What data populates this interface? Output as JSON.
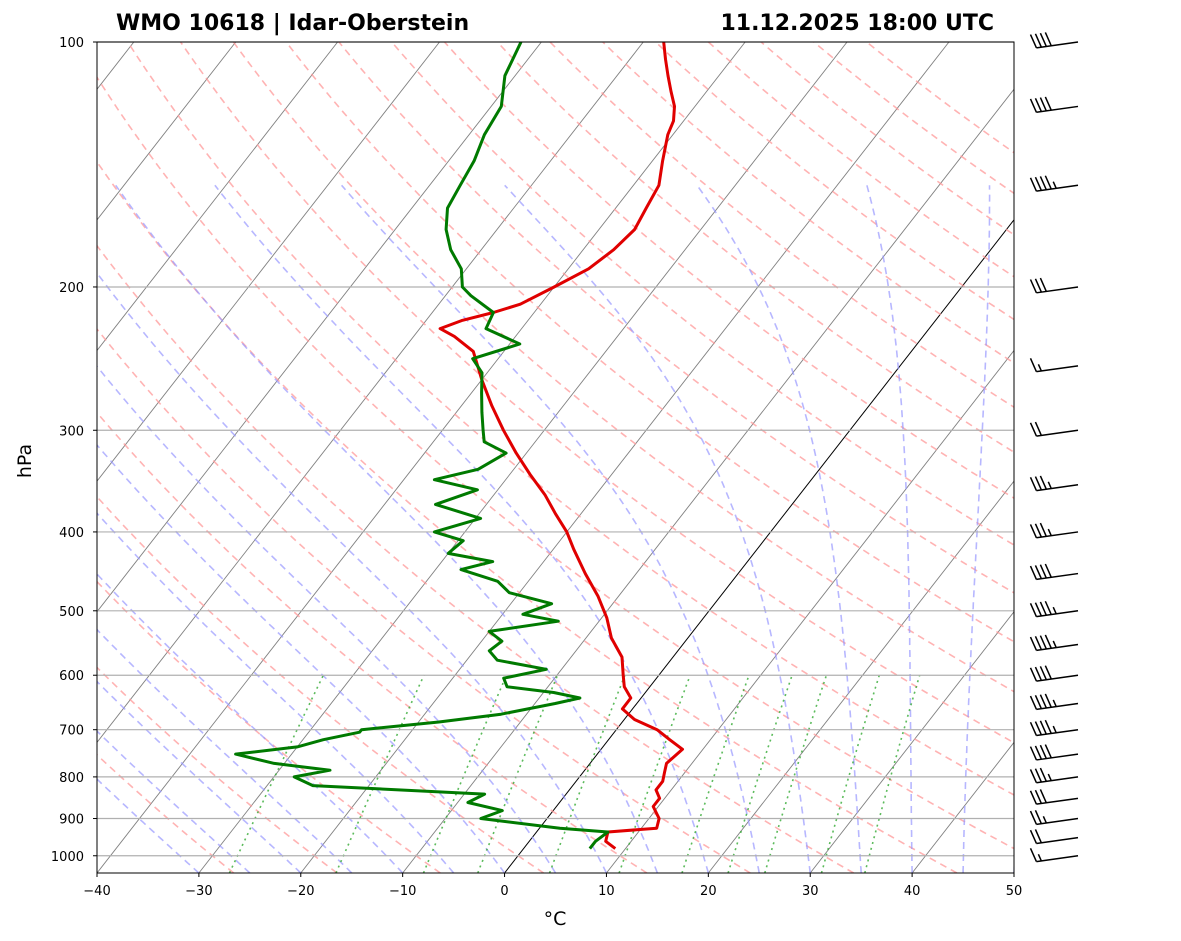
{
  "chart_data": {
    "type": "skew-t",
    "title_left": "WMO 10618 | Idar-Oberstein",
    "title_right": "11.12.2025 18:00 UTC",
    "xlabel": "°C",
    "ylabel": "hPa",
    "xlim": [
      -40,
      50
    ],
    "ylim": [
      1050,
      100
    ],
    "x_ticks": [
      -40,
      -30,
      -20,
      -10,
      0,
      10,
      20,
      30,
      40,
      50
    ],
    "x_tick_labels": [
      "−40",
      "−30",
      "−20",
      "−10",
      "0",
      "10",
      "20",
      "30",
      "40",
      "50"
    ],
    "y_ticks": [
      1000,
      900,
      800,
      700,
      600,
      500,
      400,
      300,
      200,
      100
    ],
    "y_tick_labels": [
      "1000",
      "900",
      "800",
      "700",
      "600",
      "500",
      "400",
      "300",
      "200",
      "100"
    ],
    "grid": true,
    "series": [
      {
        "name": "Temperature",
        "color": "#e00000",
        "points": [
          [
            980,
            9.0
          ],
          [
            960,
            7.5
          ],
          [
            935,
            7.0
          ],
          [
            925,
            11.5
          ],
          [
            900,
            11.0
          ],
          [
            870,
            9.5
          ],
          [
            850,
            9.5
          ],
          [
            830,
            8.5
          ],
          [
            810,
            8.5
          ],
          [
            790,
            8.0
          ],
          [
            770,
            7.5
          ],
          [
            740,
            8.0
          ],
          [
            720,
            6.0
          ],
          [
            700,
            4.0
          ],
          [
            680,
            1.0
          ],
          [
            660,
            -1.0
          ],
          [
            640,
            -1.0
          ],
          [
            620,
            -2.5
          ],
          [
            600,
            -3.5
          ],
          [
            570,
            -5.0
          ],
          [
            540,
            -7.5
          ],
          [
            510,
            -9.5
          ],
          [
            480,
            -12.0
          ],
          [
            450,
            -15.0
          ],
          [
            420,
            -18.0
          ],
          [
            400,
            -20.0
          ],
          [
            380,
            -22.5
          ],
          [
            360,
            -25.0
          ],
          [
            340,
            -28.0
          ],
          [
            320,
            -31.0
          ],
          [
            300,
            -34.0
          ],
          [
            280,
            -37.0
          ],
          [
            260,
            -40.0
          ],
          [
            240,
            -43.0
          ],
          [
            230,
            -46.0
          ],
          [
            225,
            -48.0
          ],
          [
            220,
            -46.5
          ],
          [
            215,
            -44.0
          ],
          [
            210,
            -42.0
          ],
          [
            200,
            -40.0
          ],
          [
            190,
            -38.0
          ],
          [
            180,
            -37.0
          ],
          [
            170,
            -36.5
          ],
          [
            160,
            -37.0
          ],
          [
            150,
            -37.5
          ],
          [
            140,
            -39.0
          ],
          [
            130,
            -40.5
          ],
          [
            125,
            -41.0
          ],
          [
            120,
            -42.0
          ],
          [
            115,
            -43.5
          ],
          [
            110,
            -45.0
          ],
          [
            105,
            -46.5
          ],
          [
            100,
            -48.0
          ]
        ]
      },
      {
        "name": "Dewpoint",
        "color": "#007a00",
        "points": [
          [
            980,
            6.5
          ],
          [
            960,
            6.5
          ],
          [
            935,
            7.0
          ],
          [
            925,
            2.0
          ],
          [
            900,
            -6.5
          ],
          [
            880,
            -5.0
          ],
          [
            860,
            -9.0
          ],
          [
            840,
            -8.0
          ],
          [
            820,
            -25.5
          ],
          [
            800,
            -28.0
          ],
          [
            785,
            -25.0
          ],
          [
            770,
            -31.0
          ],
          [
            750,
            -35.5
          ],
          [
            735,
            -30.0
          ],
          [
            720,
            -28.0
          ],
          [
            705,
            -25.0
          ],
          [
            700,
            -25.0
          ],
          [
            685,
            -18.0
          ],
          [
            670,
            -12.5
          ],
          [
            650,
            -8.0
          ],
          [
            640,
            -6.0
          ],
          [
            630,
            -9.0
          ],
          [
            620,
            -14.0
          ],
          [
            605,
            -15.0
          ],
          [
            590,
            -11.5
          ],
          [
            575,
            -17.0
          ],
          [
            560,
            -18.5
          ],
          [
            545,
            -18.0
          ],
          [
            530,
            -20.0
          ],
          [
            515,
            -14.0
          ],
          [
            505,
            -18.0
          ],
          [
            490,
            -16.0
          ],
          [
            475,
            -21.0
          ],
          [
            460,
            -23.0
          ],
          [
            445,
            -27.5
          ],
          [
            435,
            -25.0
          ],
          [
            425,
            -30.0
          ],
          [
            410,
            -29.5
          ],
          [
            400,
            -33.0
          ],
          [
            385,
            -29.5
          ],
          [
            370,
            -35.0
          ],
          [
            355,
            -32.0
          ],
          [
            345,
            -37.0
          ],
          [
            335,
            -33.5
          ],
          [
            320,
            -32.0
          ],
          [
            310,
            -35.0
          ],
          [
            300,
            -36.0
          ],
          [
            285,
            -37.5
          ],
          [
            270,
            -39.0
          ],
          [
            255,
            -40.5
          ],
          [
            245,
            -42.5
          ],
          [
            235,
            -39.0
          ],
          [
            225,
            -43.5
          ],
          [
            215,
            -44.0
          ],
          [
            205,
            -47.5
          ],
          [
            200,
            -49.0
          ],
          [
            190,
            -50.5
          ],
          [
            180,
            -53.0
          ],
          [
            170,
            -55.0
          ],
          [
            160,
            -56.5
          ],
          [
            150,
            -57.0
          ],
          [
            140,
            -57.5
          ],
          [
            130,
            -58.5
          ],
          [
            120,
            -59.0
          ],
          [
            110,
            -61.0
          ],
          [
            100,
            -62.0
          ]
        ]
      }
    ],
    "background_lines": [
      {
        "name": "isotherms",
        "color": "#808080",
        "style": "solid"
      },
      {
        "name": "0°C isotherm",
        "color": "#000000",
        "style": "solid"
      },
      {
        "name": "dry adiabats",
        "color": "#ff9999",
        "style": "dashed"
      },
      {
        "name": "moist adiabats",
        "color": "#9999ff",
        "style": "dashed"
      },
      {
        "name": "mixing ratio lines",
        "color": "#33aa33",
        "style": "dotted"
      }
    ],
    "wind_barbs": [
      [
        1000,
        15
      ],
      [
        950,
        20
      ],
      [
        900,
        25
      ],
      [
        850,
        30
      ],
      [
        800,
        35
      ],
      [
        750,
        40
      ],
      [
        700,
        45
      ],
      [
        650,
        45
      ],
      [
        600,
        40
      ],
      [
        550,
        45
      ],
      [
        500,
        45
      ],
      [
        450,
        40
      ],
      [
        400,
        35
      ],
      [
        350,
        35
      ],
      [
        300,
        20
      ],
      [
        250,
        15
      ],
      [
        200,
        30
      ],
      [
        150,
        45
      ],
      [
        120,
        40
      ],
      [
        100,
        40
      ]
    ]
  }
}
